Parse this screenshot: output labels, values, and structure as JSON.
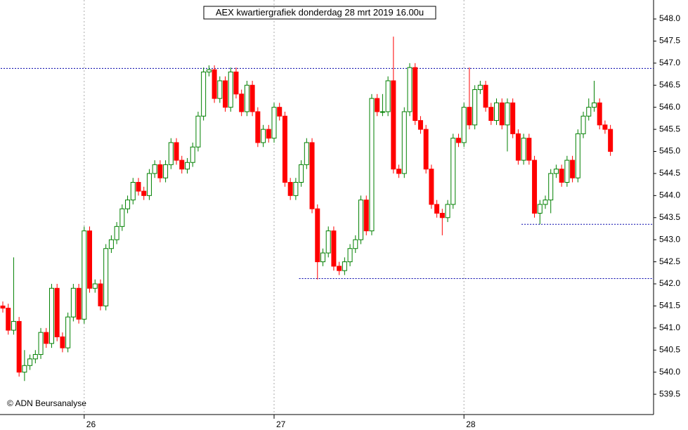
{
  "chart_data": {
    "type": "candlestick",
    "title": "AEX kwartiergrafiek donderdag 28 mrt 2019 16.00u",
    "credit": "© ADN Beursanalyse",
    "up_color": "#008000",
    "down_color": "#ff0000",
    "ylim": [
      539.04,
      548.43
    ],
    "yticks": [
      {
        "value": 539.5,
        "label": "539.5"
      },
      {
        "value": 540,
        "label": "540.0"
      },
      {
        "value": 540.5,
        "label": "540.5"
      },
      {
        "value": 541,
        "label": "541.0"
      },
      {
        "value": 541.5,
        "label": "541.5"
      },
      {
        "value": 542,
        "label": "542.0"
      },
      {
        "value": 542.5,
        "label": "542.5"
      },
      {
        "value": 543,
        "label": "543.0"
      },
      {
        "value": 543.5,
        "label": "543.5"
      },
      {
        "value": 544,
        "label": "544.0"
      },
      {
        "value": 544.5,
        "label": "544.5"
      },
      {
        "value": 545,
        "label": "545.0"
      },
      {
        "value": 545.5,
        "label": "545.5"
      },
      {
        "value": 546,
        "label": "546.0"
      },
      {
        "value": 546.5,
        "label": "546.5"
      },
      {
        "value": 547,
        "label": "547.0"
      },
      {
        "value": 547.5,
        "label": "547.5"
      },
      {
        "value": 548,
        "label": "548.0"
      }
    ],
    "categories": [
      null,
      null,
      null,
      null,
      null,
      null,
      null,
      null,
      null,
      null,
      null,
      null,
      null,
      null,
      null,
      "26",
      null,
      null,
      null,
      null,
      null,
      null,
      null,
      null,
      null,
      null,
      null,
      null,
      null,
      null,
      null,
      null,
      null,
      null,
      null,
      null,
      null,
      null,
      null,
      null,
      null,
      null,
      null,
      null,
      null,
      null,
      null,
      null,
      null,
      null,
      "27",
      null,
      null,
      null,
      null,
      null,
      null,
      null,
      null,
      null,
      null,
      null,
      null,
      null,
      null,
      null,
      null,
      null,
      null,
      null,
      null,
      null,
      null,
      null,
      null,
      null,
      null,
      null,
      null,
      null,
      null,
      null,
      null,
      null,
      null,
      "28",
      null,
      null,
      null,
      null,
      null,
      null,
      null,
      null,
      null,
      null,
      null,
      null,
      null,
      null,
      null,
      null,
      null,
      null,
      null,
      null,
      null,
      null,
      null,
      null,
      null,
      null,
      null
    ],
    "hlines": [
      {
        "value": 546.88,
        "from": 0
      },
      {
        "value": 543.35,
        "from": 96
      },
      {
        "value": 542.12,
        "from": 55
      }
    ],
    "candles": [
      [
        541.5,
        541.6,
        541.35,
        541.45
      ],
      [
        541.45,
        541.55,
        540.85,
        540.95
      ],
      [
        540.95,
        542.6,
        540.85,
        541.15
      ],
      [
        541.15,
        541.25,
        539.9,
        540.0
      ],
      [
        540.0,
        540.5,
        539.8,
        540.15
      ],
      [
        540.15,
        540.4,
        540.05,
        540.3
      ],
      [
        540.3,
        540.5,
        540.2,
        540.4
      ],
      [
        540.4,
        541.0,
        540.3,
        540.9
      ],
      [
        540.9,
        541.0,
        540.55,
        540.65
      ],
      [
        540.65,
        542.0,
        540.55,
        541.9
      ],
      [
        541.9,
        542.0,
        540.7,
        540.8
      ],
      [
        540.8,
        540.9,
        540.45,
        540.55
      ],
      [
        540.55,
        541.35,
        540.45,
        541.25
      ],
      [
        541.25,
        542.0,
        541.15,
        541.9
      ],
      [
        541.9,
        542.0,
        541.1,
        541.2
      ],
      [
        541.2,
        543.3,
        541.1,
        543.2
      ],
      [
        543.2,
        543.3,
        541.8,
        541.9
      ],
      [
        541.9,
        542.1,
        541.8,
        542.0
      ],
      [
        542.0,
        542.1,
        541.4,
        541.5
      ],
      [
        541.5,
        542.9,
        541.4,
        542.8
      ],
      [
        542.8,
        543.1,
        542.7,
        543.0
      ],
      [
        543.0,
        543.4,
        542.9,
        543.3
      ],
      [
        543.3,
        543.8,
        543.2,
        543.7
      ],
      [
        543.7,
        544.0,
        543.6,
        543.9
      ],
      [
        543.9,
        544.4,
        543.8,
        544.3
      ],
      [
        544.3,
        544.4,
        544.0,
        544.1
      ],
      [
        544.1,
        544.2,
        543.9,
        544.0
      ],
      [
        544.0,
        544.6,
        543.9,
        544.5
      ],
      [
        544.5,
        544.8,
        544.4,
        544.7
      ],
      [
        544.7,
        544.8,
        544.3,
        544.4
      ],
      [
        544.4,
        544.8,
        544.3,
        544.7
      ],
      [
        544.7,
        545.3,
        544.6,
        545.2
      ],
      [
        545.2,
        545.3,
        544.7,
        544.8
      ],
      [
        544.8,
        544.9,
        544.5,
        544.6
      ],
      [
        544.6,
        544.85,
        544.5,
        544.75
      ],
      [
        544.75,
        545.2,
        544.65,
        545.1
      ],
      [
        545.1,
        545.9,
        545.0,
        545.8
      ],
      [
        545.8,
        546.9,
        545.7,
        546.8
      ],
      [
        546.8,
        546.95,
        546.7,
        546.85
      ],
      [
        546.85,
        546.95,
        546.1,
        546.2
      ],
      [
        546.2,
        546.7,
        546.1,
        546.6
      ],
      [
        546.6,
        546.7,
        545.9,
        546.0
      ],
      [
        546.0,
        546.9,
        545.9,
        546.8
      ],
      [
        546.8,
        546.9,
        546.2,
        546.3
      ],
      [
        546.3,
        546.4,
        545.8,
        545.9
      ],
      [
        545.9,
        546.6,
        545.8,
        546.5
      ],
      [
        546.5,
        546.6,
        545.8,
        545.9
      ],
      [
        545.9,
        546.0,
        545.1,
        545.2
      ],
      [
        545.2,
        545.6,
        545.1,
        545.5
      ],
      [
        545.5,
        545.6,
        545.2,
        545.3
      ],
      [
        545.3,
        546.1,
        545.2,
        546.0
      ],
      [
        546.0,
        546.1,
        545.7,
        545.8
      ],
      [
        545.8,
        545.9,
        544.2,
        544.3
      ],
      [
        544.3,
        544.4,
        543.9,
        544.0
      ],
      [
        544.0,
        544.4,
        543.9,
        544.3
      ],
      [
        544.3,
        544.8,
        544.2,
        544.7
      ],
      [
        544.7,
        545.3,
        544.6,
        545.2
      ],
      [
        545.2,
        545.3,
        543.6,
        543.7
      ],
      [
        543.7,
        543.8,
        542.1,
        542.5
      ],
      [
        542.5,
        542.8,
        542.4,
        542.7
      ],
      [
        542.7,
        543.3,
        542.6,
        543.2
      ],
      [
        543.2,
        543.3,
        542.3,
        542.4
      ],
      [
        542.4,
        542.5,
        542.2,
        542.3
      ],
      [
        542.3,
        542.6,
        542.2,
        542.5
      ],
      [
        542.5,
        542.9,
        542.4,
        542.8
      ],
      [
        542.8,
        543.1,
        542.7,
        543.0
      ],
      [
        543.0,
        544.0,
        542.9,
        543.9
      ],
      [
        543.9,
        544.0,
        543.1,
        543.2
      ],
      [
        543.2,
        546.3,
        543.1,
        546.2
      ],
      [
        546.2,
        546.3,
        545.8,
        545.9
      ],
      [
        545.9,
        546.3,
        545.8,
        545.9
      ],
      [
        545.9,
        546.7,
        545.8,
        546.6
      ],
      [
        546.6,
        547.6,
        544.5,
        544.6
      ],
      [
        544.6,
        544.7,
        544.4,
        544.5
      ],
      [
        544.5,
        546.0,
        544.4,
        545.9
      ],
      [
        545.9,
        547.0,
        545.8,
        546.9
      ],
      [
        546.9,
        547.0,
        545.6,
        545.7
      ],
      [
        545.7,
        545.8,
        545.4,
        545.5
      ],
      [
        545.5,
        545.6,
        544.5,
        544.6
      ],
      [
        544.6,
        544.7,
        543.7,
        543.8
      ],
      [
        543.8,
        543.9,
        543.5,
        543.6
      ],
      [
        543.6,
        543.7,
        543.1,
        543.5
      ],
      [
        543.5,
        543.9,
        543.4,
        543.8
      ],
      [
        543.8,
        545.4,
        543.7,
        545.3
      ],
      [
        545.3,
        545.4,
        545.1,
        545.2
      ],
      [
        545.2,
        546.1,
        545.1,
        546.0
      ],
      [
        546.0,
        546.9,
        545.5,
        545.6
      ],
      [
        545.6,
        546.5,
        545.5,
        546.4
      ],
      [
        546.4,
        546.6,
        546.3,
        546.5
      ],
      [
        546.5,
        546.6,
        545.9,
        546.0
      ],
      [
        546.0,
        546.1,
        545.6,
        545.7
      ],
      [
        545.7,
        546.2,
        545.6,
        546.1
      ],
      [
        546.1,
        546.2,
        545.5,
        545.6
      ],
      [
        545.6,
        546.2,
        545.0,
        546.1
      ],
      [
        546.1,
        546.2,
        545.3,
        545.4
      ],
      [
        545.4,
        545.5,
        544.7,
        544.8
      ],
      [
        544.8,
        545.4,
        544.7,
        545.3
      ],
      [
        545.3,
        545.4,
        544.7,
        544.8
      ],
      [
        544.8,
        544.9,
        543.5,
        543.6
      ],
      [
        543.6,
        543.9,
        543.35,
        543.8
      ],
      [
        543.8,
        544.0,
        543.7,
        543.9
      ],
      [
        543.9,
        544.6,
        543.6,
        544.5
      ],
      [
        544.5,
        544.7,
        544.4,
        544.6
      ],
      [
        544.6,
        544.7,
        544.2,
        544.3
      ],
      [
        544.3,
        544.9,
        544.2,
        544.8
      ],
      [
        544.8,
        544.9,
        544.3,
        544.4
      ],
      [
        544.4,
        545.5,
        544.3,
        545.4
      ],
      [
        545.4,
        545.9,
        545.3,
        545.8
      ],
      [
        545.8,
        546.2,
        545.7,
        546.0
      ],
      [
        546.0,
        546.6,
        545.9,
        546.1
      ],
      [
        546.1,
        546.2,
        545.5,
        545.6
      ],
      [
        545.6,
        545.7,
        545.4,
        545.5
      ],
      [
        545.5,
        545.6,
        544.9,
        545.0
      ]
    ]
  }
}
